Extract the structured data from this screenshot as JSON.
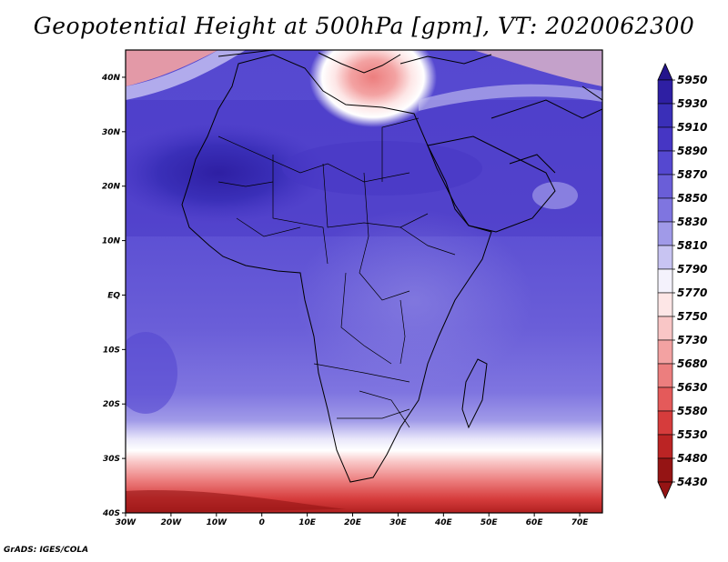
{
  "title": "Geopotential Height at 500hPa [gpm], VT: 2020062300",
  "footer": "GrADS: IGES/COLA",
  "map": {
    "lon_range": [
      -30,
      75
    ],
    "lat_range": [
      -40,
      45
    ],
    "lat_ticks": [
      "40N",
      "30N",
      "20N",
      "10N",
      "EQ",
      "10S",
      "20S",
      "30S",
      "40S"
    ],
    "lon_ticks": [
      "30W",
      "20W",
      "10W",
      "0",
      "10E",
      "20E",
      "30E",
      "40E",
      "50E",
      "60E",
      "70E"
    ]
  },
  "colorbar": {
    "levels": [
      "5950",
      "5930",
      "5910",
      "5890",
      "5870",
      "5850",
      "5830",
      "5810",
      "5790",
      "5770",
      "5750",
      "5730",
      "5680",
      "5630",
      "5580",
      "5530",
      "5480",
      "5430"
    ],
    "colors": [
      "#24148c",
      "#2e1fa3",
      "#3a2fb8",
      "#4636c4",
      "#5548d0",
      "#6a5ed8",
      "#7f75e0",
      "#a09ae8",
      "#c8c4f2",
      "#f4f2fc",
      "#fde6e6",
      "#f9c6c6",
      "#f3a2a2",
      "#ec7e7e",
      "#e45a5a",
      "#d63c3c",
      "#bb2424",
      "#951414"
    ]
  }
}
